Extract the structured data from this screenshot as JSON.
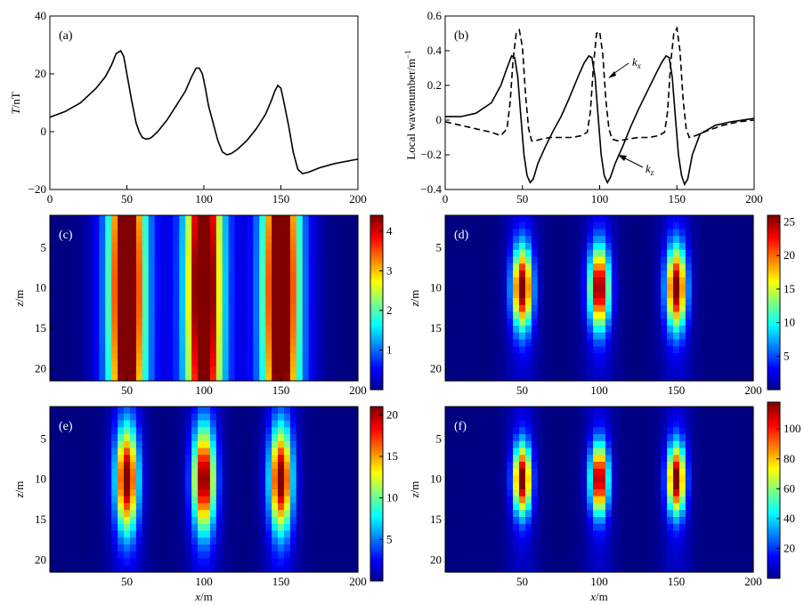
{
  "chart_data": [
    {
      "id": "a",
      "type": "line",
      "panel_label": "(a)",
      "ylabel_italic": "T",
      "ylabel_unit": "/nT",
      "xlabel": "",
      "xlim": [
        0,
        200
      ],
      "ylim": [
        -20,
        40
      ],
      "xticks": [
        0,
        50,
        100,
        150,
        200
      ],
      "yticks": [
        -20,
        0,
        20,
        40
      ],
      "series": [
        {
          "style": "solid",
          "x": [
            0,
            10,
            20,
            30,
            36,
            40,
            43,
            46,
            48,
            50,
            53,
            56,
            58,
            60,
            62,
            64,
            66,
            70,
            76,
            82,
            88,
            92,
            95,
            97,
            99,
            101,
            103,
            106,
            109,
            112,
            115,
            118,
            122,
            128,
            134,
            140,
            144,
            146,
            148,
            150,
            152,
            155,
            158,
            161,
            164,
            168,
            175,
            185,
            200
          ],
          "y": [
            5,
            7,
            10,
            15,
            19,
            23,
            27,
            28,
            26,
            20,
            11,
            3,
            0,
            -2,
            -2.5,
            -2.5,
            -2,
            0,
            4,
            9,
            14,
            19,
            22,
            22,
            20,
            15,
            9,
            3,
            -3,
            -7,
            -8,
            -7.5,
            -6,
            -3,
            1,
            6,
            11,
            14,
            16,
            15,
            10,
            2,
            -7,
            -13,
            -14.5,
            -14,
            -12.5,
            -11,
            -9.5
          ]
        }
      ]
    },
    {
      "id": "b",
      "type": "line",
      "panel_label": "(b)",
      "ylabel_text": "Local wavenumber/m",
      "ylabel_sup": "−1",
      "xlabel": "",
      "xlim": [
        0,
        200
      ],
      "ylim": [
        -0.4,
        0.6
      ],
      "xticks": [
        0,
        50,
        100,
        150,
        200
      ],
      "yticks": [
        -0.4,
        -0.2,
        0,
        0.2,
        0.4,
        0.6
      ],
      "annotations": [
        {
          "label": "k",
          "sub": "x"
        },
        {
          "label": "k",
          "sub": "z"
        }
      ],
      "series": [
        {
          "style": "solid",
          "x": [
            0,
            10,
            20,
            30,
            36,
            40,
            43,
            45,
            47,
            49,
            51,
            53,
            55,
            57,
            60,
            65,
            70,
            75,
            80,
            86,
            90,
            93,
            95,
            97,
            99,
            101,
            103,
            105,
            107,
            110,
            115,
            120,
            125,
            130,
            136,
            140,
            143,
            145,
            147,
            149,
            151,
            153,
            155,
            157,
            160,
            165,
            175,
            185,
            200
          ],
          "y": [
            0.02,
            0.02,
            0.04,
            0.1,
            0.2,
            0.3,
            0.37,
            0.36,
            0.25,
            0.02,
            -0.2,
            -0.32,
            -0.36,
            -0.34,
            -0.25,
            -0.15,
            -0.06,
            0.02,
            0.12,
            0.25,
            0.33,
            0.37,
            0.36,
            0.25,
            0.02,
            -0.2,
            -0.32,
            -0.36,
            -0.33,
            -0.25,
            -0.15,
            -0.04,
            0.06,
            0.15,
            0.26,
            0.33,
            0.37,
            0.36,
            0.25,
            0.02,
            -0.2,
            -0.32,
            -0.37,
            -0.34,
            -0.2,
            -0.08,
            -0.03,
            -0.01,
            0.01
          ]
        },
        {
          "style": "dashed",
          "x": [
            0,
            10,
            20,
            30,
            36,
            40,
            42,
            44,
            46,
            48,
            50,
            52,
            54,
            56,
            58,
            62,
            68,
            75,
            82,
            88,
            92,
            94,
            96,
            98,
            100,
            102,
            104,
            106,
            108,
            112,
            118,
            125,
            132,
            138,
            142,
            144,
            146,
            148,
            150,
            152,
            154,
            156,
            158,
            162,
            170,
            180,
            190,
            200
          ],
          "y": [
            -0.01,
            -0.03,
            -0.05,
            -0.07,
            -0.09,
            -0.05,
            0.1,
            0.35,
            0.5,
            0.52,
            0.42,
            0.15,
            -0.05,
            -0.12,
            -0.12,
            -0.11,
            -0.1,
            -0.1,
            -0.1,
            -0.09,
            -0.07,
            0.05,
            0.32,
            0.5,
            0.51,
            0.38,
            0.12,
            -0.05,
            -0.11,
            -0.12,
            -0.11,
            -0.1,
            -0.1,
            -0.09,
            -0.07,
            0.05,
            0.33,
            0.5,
            0.53,
            0.4,
            0.12,
            -0.05,
            -0.1,
            -0.09,
            -0.06,
            -0.03,
            -0.01,
            0.0
          ]
        }
      ]
    },
    {
      "id": "c",
      "type": "heatmap",
      "panel_label": "(c)",
      "ylabel_italic": "z",
      "ylabel_unit": "/m",
      "xlim": [
        0,
        200
      ],
      "ylim": [
        1,
        21.5
      ],
      "xticks": [
        50,
        100,
        150,
        200
      ],
      "yticks": [
        5,
        10,
        15,
        20
      ],
      "centers_x": [
        50,
        100,
        150
      ],
      "center_z": 10,
      "peak": 4.3,
      "sigma_x": 7,
      "sigma_z": 10,
      "shape": "elongated",
      "colorbar": {
        "min": 0,
        "max": 4.4,
        "ticks": [
          1,
          2,
          3,
          4
        ]
      }
    },
    {
      "id": "d",
      "type": "heatmap",
      "panel_label": "(d)",
      "ylabel_italic": "z",
      "ylabel_unit": "/m",
      "xlim": [
        0,
        200
      ],
      "ylim": [
        1,
        21.5
      ],
      "xticks": [
        50,
        100,
        150,
        200
      ],
      "yticks": [
        5,
        10,
        15,
        20
      ],
      "centers_x": [
        50,
        100,
        150
      ],
      "center_z": 10,
      "peak": 25.5,
      "sigma_x": 4.5,
      "sigma_z": 3.5,
      "shape": "compact",
      "colorbar": {
        "min": 0,
        "max": 26,
        "ticks": [
          5,
          10,
          15,
          20,
          25
        ]
      }
    },
    {
      "id": "e",
      "type": "heatmap",
      "panel_label": "(e)",
      "ylabel_italic": "z",
      "ylabel_unit": "/m",
      "xlabel_italic": "x",
      "xlabel_unit": "/m",
      "xlim": [
        0,
        200
      ],
      "ylim": [
        1,
        21.5
      ],
      "xticks": [
        50,
        100,
        150,
        200
      ],
      "yticks": [
        5,
        10,
        15,
        20
      ],
      "centers_x": [
        50,
        100,
        150
      ],
      "center_z": 10,
      "peak": 20.5,
      "sigma_x": 5,
      "sigma_z": 4.5,
      "shape": "compact",
      "colorbar": {
        "min": 0,
        "max": 21,
        "ticks": [
          5,
          10,
          15,
          20
        ]
      }
    },
    {
      "id": "f",
      "type": "heatmap",
      "panel_label": "(f)",
      "ylabel_italic": "z",
      "ylabel_unit": "/m",
      "xlabel_italic": "x",
      "xlabel_unit": "/m",
      "xlim": [
        0,
        200
      ],
      "ylim": [
        1,
        21.5
      ],
      "xticks": [
        50,
        100,
        150,
        200
      ],
      "yticks": [
        5,
        10,
        15,
        20
      ],
      "centers_x": [
        50,
        100,
        150
      ],
      "center_z": 10,
      "peak": 115,
      "sigma_x": 4,
      "sigma_z": 3,
      "shape": "compact",
      "colorbar": {
        "min": 0,
        "max": 118,
        "ticks": [
          20,
          40,
          60,
          80,
          100
        ]
      }
    }
  ],
  "colormap": "jet"
}
